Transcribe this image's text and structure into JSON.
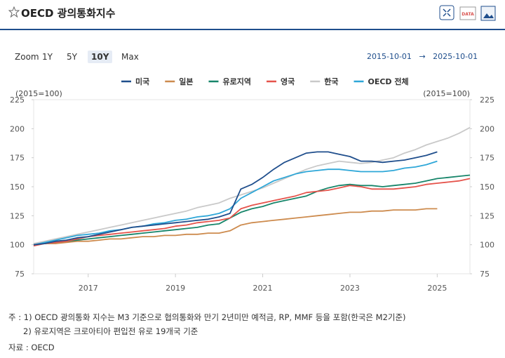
{
  "header": {
    "title": "OECD 광의통화지수",
    "data_icon": "DATA"
  },
  "zoom": {
    "label": "Zoom",
    "buttons": [
      "1Y",
      "5Y",
      "10Y",
      "Max"
    ],
    "active": 2
  },
  "date_range": {
    "from": "2015-10-01",
    "arrow": "→",
    "to": "2025-10-01"
  },
  "chart_data": {
    "type": "line",
    "ylabel": "(2015=100)",
    "y2label": "(2015=100)",
    "x": [
      2015.75,
      2016,
      2016.25,
      2016.5,
      2016.75,
      2017,
      2017.25,
      2017.5,
      2017.75,
      2018,
      2018.25,
      2018.5,
      2018.75,
      2019,
      2019.25,
      2019.5,
      2019.75,
      2020,
      2020.25,
      2020.5,
      2020.75,
      2021,
      2021.25,
      2021.5,
      2021.75,
      2022,
      2022.25,
      2022.5,
      2022.75,
      2023,
      2023.25,
      2023.5,
      2023.75,
      2024,
      2024.25,
      2024.5,
      2024.75,
      2025,
      2025.25,
      2025.5,
      2025.75
    ],
    "xlim": [
      2015.75,
      2025.75
    ],
    "xticks": [
      2017,
      2019,
      2021,
      2023,
      2025
    ],
    "ylim": [
      75,
      225
    ],
    "yticks": [
      75,
      100,
      125,
      150,
      175,
      200,
      225
    ],
    "y2lim": [
      75,
      225
    ],
    "y2ticks": [
      75,
      100,
      125,
      150,
      175,
      200,
      225
    ],
    "grid": false,
    "series": [
      {
        "name": "미국",
        "color": "#1f4e8c",
        "values": [
          100,
          101,
          103,
          104,
          106,
          107,
          109,
          111,
          113,
          115,
          116,
          117,
          118,
          119,
          120,
          121,
          122,
          124,
          127,
          148,
          152,
          158,
          165,
          171,
          175,
          179,
          180,
          180,
          178,
          176,
          172,
          172,
          171,
          172,
          173,
          175,
          177,
          180,
          null,
          null,
          null
        ]
      },
      {
        "name": "일본",
        "color": "#cd8b4e",
        "values": [
          100,
          101,
          101,
          102,
          103,
          103,
          104,
          105,
          105,
          106,
          107,
          107,
          108,
          108,
          109,
          109,
          110,
          110,
          112,
          117,
          119,
          120,
          121,
          122,
          123,
          124,
          125,
          126,
          127,
          128,
          128,
          129,
          129,
          130,
          130,
          130,
          131,
          131,
          null,
          null,
          null
        ]
      },
      {
        "name": "유로지역",
        "color": "#17856a",
        "values": [
          100,
          101,
          102,
          103,
          104,
          105,
          106,
          107,
          108,
          109,
          110,
          111,
          112,
          113,
          114,
          115,
          117,
          118,
          123,
          128,
          131,
          133,
          136,
          138,
          140,
          142,
          146,
          149,
          151,
          152,
          151,
          151,
          150,
          151,
          152,
          153,
          155,
          157,
          158,
          159,
          160
        ]
      },
      {
        "name": "영국",
        "color": "#e5534b",
        "values": [
          99,
          101,
          102,
          103,
          105,
          107,
          108,
          109,
          110,
          111,
          112,
          113,
          114,
          116,
          117,
          119,
          120,
          121,
          123,
          131,
          134,
          136,
          138,
          140,
          142,
          145,
          146,
          147,
          149,
          151,
          150,
          148,
          148,
          148,
          149,
          150,
          152,
          153,
          154,
          155,
          157
        ]
      },
      {
        "name": "한국",
        "color": "#c9c9c9",
        "values": [
          101,
          103,
          105,
          107,
          109,
          111,
          113,
          115,
          117,
          119,
          121,
          123,
          125,
          127,
          129,
          132,
          134,
          136,
          140,
          143,
          146,
          149,
          153,
          157,
          161,
          165,
          168,
          170,
          172,
          171,
          170,
          171,
          173,
          175,
          179,
          182,
          186,
          189,
          192,
          196,
          201
        ]
      },
      {
        "name": "OECD 전체",
        "color": "#2ea7d8",
        "values": [
          100,
          102,
          104,
          106,
          108,
          109,
          110,
          112,
          113,
          115,
          116,
          118,
          119,
          121,
          122,
          124,
          125,
          127,
          131,
          140,
          145,
          150,
          155,
          158,
          161,
          163,
          164,
          165,
          165,
          164,
          163,
          163,
          163,
          164,
          166,
          167,
          169,
          172,
          null,
          null,
          null
        ]
      }
    ]
  },
  "notes": [
    "주 : 1) OECD 광의통화 지수는 M3 기준으로 협의통화와 만기 2년미만 예적금, RP, MMF 등을 포함(한국은 M2기준)",
    "2) 유로지역은 크로아티아 편입전 유로 19개국 기준"
  ],
  "source": "자료 : OECD"
}
